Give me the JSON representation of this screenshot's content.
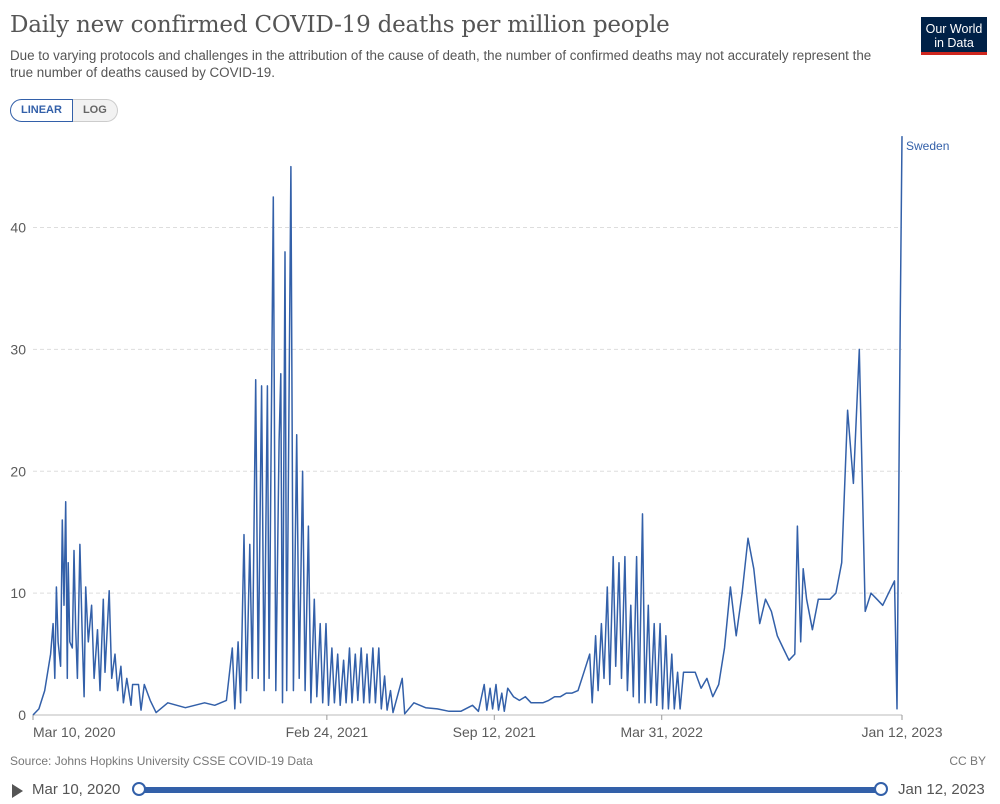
{
  "header": {
    "title": "Daily new confirmed COVID-19 deaths per million people",
    "subtitle": "Due to varying protocols and challenges in the attribution of the cause of death, the number of confirmed deaths may not accurately represent the true number of deaths caused by COVID-19.",
    "logo_line1": "Our World",
    "logo_line2": "in Data"
  },
  "controls": {
    "linear_label": "LINEAR",
    "log_label": "LOG",
    "active_scale": "linear"
  },
  "footer": {
    "source": "Source: Johns Hopkins University CSSE COVID-19 Data",
    "license": "CC BY"
  },
  "timeline": {
    "start_label": "Mar 10, 2020",
    "end_label": "Jan 12, 2023",
    "selected_start": "2020-03-10",
    "selected_end": "2023-01-12"
  },
  "colors": {
    "series": "#3360a9",
    "grid": "#dddddd",
    "text": "#5b5b5b",
    "logo_bg": "#002147",
    "logo_accent": "#ce261e"
  },
  "chart_data": {
    "type": "line",
    "title": "Daily new confirmed COVID-19 deaths per million people",
    "xlabel": "",
    "ylabel": "",
    "ylim": [
      0,
      48
    ],
    "xlim": [
      "2020-03-10",
      "2023-01-12"
    ],
    "y_ticks": [
      0,
      10,
      20,
      30,
      40
    ],
    "x_ticks": [
      {
        "date": "2020-03-10",
        "label": "Mar 10, 2020"
      },
      {
        "date": "2021-02-24",
        "label": "Feb 24, 2021"
      },
      {
        "date": "2021-09-12",
        "label": "Sep 12, 2021"
      },
      {
        "date": "2022-03-31",
        "label": "Mar 31, 2022"
      },
      {
        "date": "2023-01-12",
        "label": "Jan 12, 2023"
      }
    ],
    "grid": true,
    "legend": "end-of-line label",
    "series": [
      {
        "name": "Sweden",
        "points": [
          [
            "2020-03-10",
            0
          ],
          [
            "2020-03-17",
            0.5
          ],
          [
            "2020-03-24",
            2
          ],
          [
            "2020-03-31",
            5
          ],
          [
            "2020-04-03",
            7.5
          ],
          [
            "2020-04-05",
            3
          ],
          [
            "2020-04-07",
            10.5
          ],
          [
            "2020-04-09",
            6
          ],
          [
            "2020-04-12",
            4
          ],
          [
            "2020-04-14",
            16
          ],
          [
            "2020-04-16",
            9
          ],
          [
            "2020-04-18",
            17.5
          ],
          [
            "2020-04-20",
            3
          ],
          [
            "2020-04-21",
            12.5
          ],
          [
            "2020-04-23",
            6
          ],
          [
            "2020-04-26",
            5.5
          ],
          [
            "2020-04-28",
            13.5
          ],
          [
            "2020-04-30",
            7
          ],
          [
            "2020-05-02",
            3
          ],
          [
            "2020-05-05",
            14
          ],
          [
            "2020-05-08",
            6
          ],
          [
            "2020-05-10",
            1.5
          ],
          [
            "2020-05-12",
            10.5
          ],
          [
            "2020-05-15",
            6
          ],
          [
            "2020-05-19",
            9
          ],
          [
            "2020-05-22",
            3
          ],
          [
            "2020-05-26",
            7
          ],
          [
            "2020-05-29",
            2
          ],
          [
            "2020-06-02",
            9.5
          ],
          [
            "2020-06-04",
            3.5
          ],
          [
            "2020-06-09",
            10.2
          ],
          [
            "2020-06-12",
            3
          ],
          [
            "2020-06-16",
            5
          ],
          [
            "2020-06-19",
            2
          ],
          [
            "2020-06-23",
            4
          ],
          [
            "2020-06-26",
            1
          ],
          [
            "2020-06-30",
            3
          ],
          [
            "2020-07-05",
            0.8
          ],
          [
            "2020-07-07",
            2.5
          ],
          [
            "2020-07-14",
            2.5
          ],
          [
            "2020-07-17",
            0.4
          ],
          [
            "2020-07-21",
            2.5
          ],
          [
            "2020-07-28",
            1.2
          ],
          [
            "2020-08-04",
            0.2
          ],
          [
            "2020-08-18",
            1
          ],
          [
            "2020-09-08",
            0.6
          ],
          [
            "2020-10-01",
            1
          ],
          [
            "2020-10-13",
            0.8
          ],
          [
            "2020-10-27",
            1.2
          ],
          [
            "2020-11-03",
            5.5
          ],
          [
            "2020-11-06",
            0.5
          ],
          [
            "2020-11-10",
            6
          ],
          [
            "2020-11-13",
            1
          ],
          [
            "2020-11-17",
            14.8
          ],
          [
            "2020-11-20",
            2
          ],
          [
            "2020-11-24",
            14
          ],
          [
            "2020-11-27",
            3
          ],
          [
            "2020-12-01",
            27.5
          ],
          [
            "2020-12-04",
            3
          ],
          [
            "2020-12-08",
            27
          ],
          [
            "2020-12-11",
            2
          ],
          [
            "2020-12-15",
            27
          ],
          [
            "2020-12-17",
            3
          ],
          [
            "2020-12-22",
            42.5
          ],
          [
            "2020-12-25",
            2
          ],
          [
            "2020-12-29",
            22.5
          ],
          [
            "2020-12-31",
            28
          ],
          [
            "2021-01-02",
            1
          ],
          [
            "2021-01-05",
            38
          ],
          [
            "2021-01-07",
            2
          ],
          [
            "2021-01-12",
            45
          ],
          [
            "2021-01-15",
            2
          ],
          [
            "2021-01-19",
            23
          ],
          [
            "2021-01-22",
            3
          ],
          [
            "2021-01-26",
            20
          ],
          [
            "2021-01-29",
            2
          ],
          [
            "2021-02-02",
            15.5
          ],
          [
            "2021-02-05",
            1
          ],
          [
            "2021-02-09",
            9.5
          ],
          [
            "2021-02-12",
            1.5
          ],
          [
            "2021-02-16",
            7.5
          ],
          [
            "2021-02-19",
            1
          ],
          [
            "2021-02-23",
            7.5
          ],
          [
            "2021-02-26",
            0.8
          ],
          [
            "2021-03-02",
            5.5
          ],
          [
            "2021-03-05",
            1
          ],
          [
            "2021-03-09",
            5
          ],
          [
            "2021-03-12",
            0.8
          ],
          [
            "2021-03-16",
            4.5
          ],
          [
            "2021-03-19",
            1
          ],
          [
            "2021-03-23",
            5.5
          ],
          [
            "2021-03-26",
            1
          ],
          [
            "2021-03-30",
            5
          ],
          [
            "2021-04-02",
            1.2
          ],
          [
            "2021-04-06",
            5.5
          ],
          [
            "2021-04-09",
            1
          ],
          [
            "2021-04-13",
            5
          ],
          [
            "2021-04-16",
            1
          ],
          [
            "2021-04-20",
            5.5
          ],
          [
            "2021-04-23",
            1
          ],
          [
            "2021-04-27",
            5.5
          ],
          [
            "2021-04-30",
            0.5
          ],
          [
            "2021-05-04",
            3.2
          ],
          [
            "2021-05-07",
            0.4
          ],
          [
            "2021-05-11",
            2
          ],
          [
            "2021-05-14",
            0.2
          ],
          [
            "2021-05-25",
            3
          ],
          [
            "2021-05-28",
            0.1
          ],
          [
            "2021-06-08",
            1
          ],
          [
            "2021-06-22",
            0.6
          ],
          [
            "2021-07-06",
            0.5
          ],
          [
            "2021-07-20",
            0.3
          ],
          [
            "2021-08-03",
            0.3
          ],
          [
            "2021-08-17",
            0.8
          ],
          [
            "2021-08-24",
            0.3
          ],
          [
            "2021-08-31",
            2.5
          ],
          [
            "2021-09-03",
            0.4
          ],
          [
            "2021-09-07",
            2.2
          ],
          [
            "2021-09-10",
            0.5
          ],
          [
            "2021-09-14",
            2.5
          ],
          [
            "2021-09-17",
            0.4
          ],
          [
            "2021-09-21",
            1.8
          ],
          [
            "2021-09-24",
            0.3
          ],
          [
            "2021-09-28",
            2.2
          ],
          [
            "2021-10-05",
            1.5
          ],
          [
            "2021-10-12",
            1.2
          ],
          [
            "2021-10-19",
            1.5
          ],
          [
            "2021-10-26",
            1
          ],
          [
            "2021-11-02",
            1
          ],
          [
            "2021-11-09",
            1
          ],
          [
            "2021-11-16",
            1.2
          ],
          [
            "2021-11-23",
            1.5
          ],
          [
            "2021-11-30",
            1.5
          ],
          [
            "2021-12-07",
            1.8
          ],
          [
            "2021-12-14",
            1.8
          ],
          [
            "2021-12-21",
            2
          ],
          [
            "2021-12-28",
            3.5
          ],
          [
            "2022-01-04",
            5
          ],
          [
            "2022-01-07",
            1
          ],
          [
            "2022-01-11",
            6.5
          ],
          [
            "2022-01-14",
            2
          ],
          [
            "2022-01-18",
            7.5
          ],
          [
            "2022-01-21",
            3
          ],
          [
            "2022-01-25",
            10.5
          ],
          [
            "2022-01-28",
            2.5
          ],
          [
            "2022-02-01",
            13
          ],
          [
            "2022-02-04",
            4
          ],
          [
            "2022-02-08",
            12.5
          ],
          [
            "2022-02-11",
            3
          ],
          [
            "2022-02-15",
            13
          ],
          [
            "2022-02-18",
            2
          ],
          [
            "2022-02-22",
            9
          ],
          [
            "2022-02-25",
            1.5
          ],
          [
            "2022-03-01",
            13
          ],
          [
            "2022-03-04",
            1
          ],
          [
            "2022-03-08",
            16.5
          ],
          [
            "2022-03-11",
            1
          ],
          [
            "2022-03-15",
            9
          ],
          [
            "2022-03-18",
            1
          ],
          [
            "2022-03-22",
            7.5
          ],
          [
            "2022-03-25",
            0.8
          ],
          [
            "2022-03-29",
            7.5
          ],
          [
            "2022-04-01",
            0.5
          ],
          [
            "2022-04-05",
            6.5
          ],
          [
            "2022-04-08",
            0.5
          ],
          [
            "2022-04-12",
            5
          ],
          [
            "2022-04-15",
            0.5
          ],
          [
            "2022-04-19",
            3.5
          ],
          [
            "2022-04-22",
            0.5
          ],
          [
            "2022-04-26",
            3.5
          ],
          [
            "2022-05-03",
            3.5
          ],
          [
            "2022-05-10",
            3.5
          ],
          [
            "2022-05-17",
            2.2
          ],
          [
            "2022-05-24",
            3
          ],
          [
            "2022-05-31",
            1.5
          ],
          [
            "2022-06-07",
            2.5
          ],
          [
            "2022-06-14",
            5.5
          ],
          [
            "2022-06-21",
            10.5
          ],
          [
            "2022-06-28",
            6.5
          ],
          [
            "2022-07-05",
            10
          ],
          [
            "2022-07-12",
            14.5
          ],
          [
            "2022-07-19",
            12
          ],
          [
            "2022-07-26",
            7.5
          ],
          [
            "2022-08-02",
            9.5
          ],
          [
            "2022-08-09",
            8.5
          ],
          [
            "2022-08-16",
            6.5
          ],
          [
            "2022-08-23",
            5.5
          ],
          [
            "2022-08-30",
            4.5
          ],
          [
            "2022-09-06",
            5
          ],
          [
            "2022-09-09",
            15.5
          ],
          [
            "2022-09-13",
            6
          ],
          [
            "2022-09-16",
            12
          ],
          [
            "2022-09-20",
            9.5
          ],
          [
            "2022-09-27",
            7
          ],
          [
            "2022-10-04",
            9.5
          ],
          [
            "2022-10-11",
            9.5
          ],
          [
            "2022-10-18",
            9.5
          ],
          [
            "2022-10-25",
            10
          ],
          [
            "2022-11-01",
            12.5
          ],
          [
            "2022-11-08",
            25
          ],
          [
            "2022-11-15",
            19
          ],
          [
            "2022-11-22",
            30
          ],
          [
            "2022-11-29",
            8.5
          ],
          [
            "2022-12-06",
            10
          ],
          [
            "2022-12-13",
            9.5
          ],
          [
            "2022-12-20",
            9
          ],
          [
            "2022-12-27",
            10
          ],
          [
            "2023-01-03",
            11
          ],
          [
            "2023-01-06",
            0.5
          ],
          [
            "2023-01-10",
            33
          ],
          [
            "2023-01-12",
            47.5
          ]
        ]
      }
    ]
  }
}
